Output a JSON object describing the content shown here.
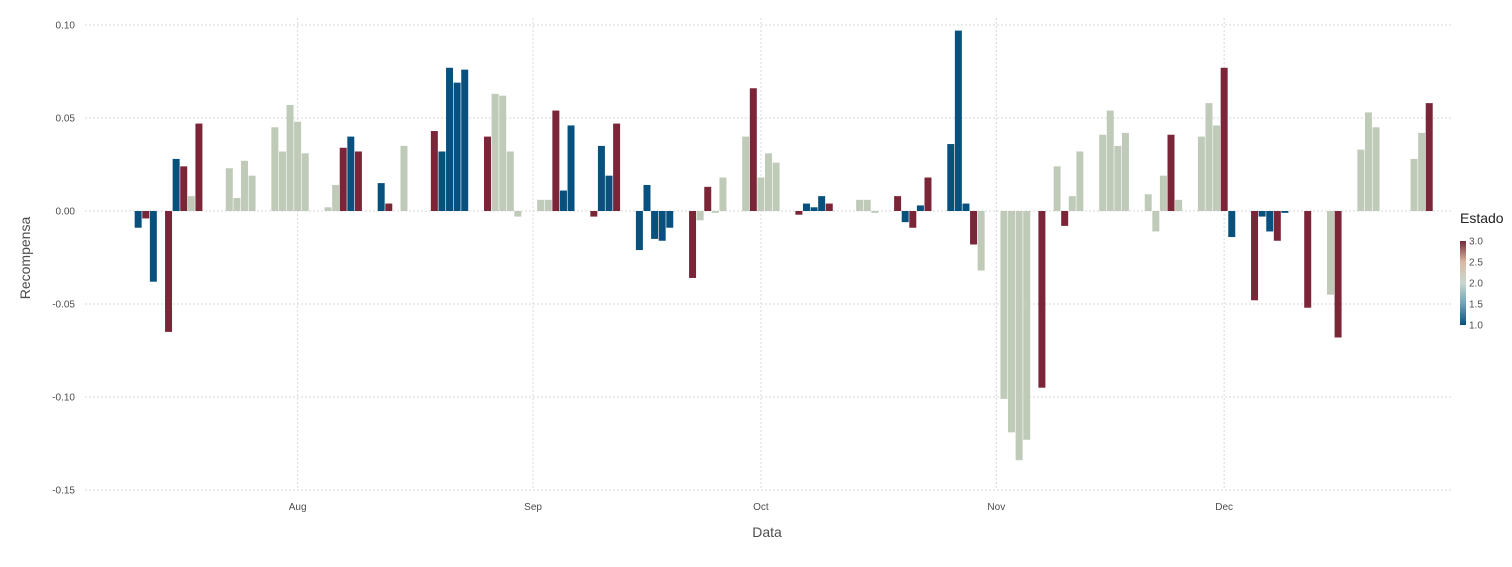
{
  "chart_data": {
    "type": "bar",
    "xlabel": "Data",
    "ylabel": "Recompensa",
    "x_axis": {
      "type": "date",
      "range": [
        "2007-07-04",
        "2007-12-31"
      ],
      "ticks": [
        {
          "date": "2007-08-01",
          "label": "Aug"
        },
        {
          "date": "2007-09-01",
          "label": "Sep"
        },
        {
          "date": "2007-10-01",
          "label": "Oct"
        },
        {
          "date": "2007-11-01",
          "label": "Nov"
        },
        {
          "date": "2007-12-01",
          "label": "Dec"
        }
      ]
    },
    "ylim": [
      -0.15,
      0.1
    ],
    "y_ticks": [
      {
        "value": 0.1,
        "label": "0.10"
      },
      {
        "value": 0.05,
        "label": "0.05"
      },
      {
        "value": 0.0,
        "label": "0.00"
      },
      {
        "value": -0.05,
        "label": "-0.05"
      },
      {
        "value": -0.1,
        "label": "-0.10"
      },
      {
        "value": -0.15,
        "label": "-0.15"
      }
    ],
    "grid": true,
    "legend": {
      "title": "Estado",
      "position": "right",
      "range": [
        1.0,
        3.0
      ],
      "labels": [
        "3.0",
        "2.5",
        "2.0",
        "1.5",
        "1.0"
      ],
      "colors": {
        "low": "#08517f",
        "mid": "#bfcbb8",
        "high": "#7b2638"
      }
    },
    "points": [
      {
        "date": "2007-07-11",
        "value": -0.009,
        "estado": 1
      },
      {
        "date": "2007-07-12",
        "value": -0.004,
        "estado": 3
      },
      {
        "date": "2007-07-13",
        "value": -0.038,
        "estado": 1
      },
      {
        "date": "2007-07-15",
        "value": -0.065,
        "estado": 3
      },
      {
        "date": "2007-07-16",
        "value": 0.028,
        "estado": 1
      },
      {
        "date": "2007-07-17",
        "value": 0.024,
        "estado": 3
      },
      {
        "date": "2007-07-18",
        "value": 0.008,
        "estado": 2
      },
      {
        "date": "2007-07-19",
        "value": 0.047,
        "estado": 3
      },
      {
        "date": "2007-07-23",
        "value": 0.023,
        "estado": 2
      },
      {
        "date": "2007-07-24",
        "value": 0.007,
        "estado": 2
      },
      {
        "date": "2007-07-25",
        "value": 0.027,
        "estado": 2
      },
      {
        "date": "2007-07-26",
        "value": 0.019,
        "estado": 2
      },
      {
        "date": "2007-07-29",
        "value": 0.045,
        "estado": 2
      },
      {
        "date": "2007-07-30",
        "value": 0.032,
        "estado": 2
      },
      {
        "date": "2007-07-31",
        "value": 0.057,
        "estado": 2
      },
      {
        "date": "2007-08-01",
        "value": 0.048,
        "estado": 2
      },
      {
        "date": "2007-08-02",
        "value": 0.031,
        "estado": 2
      },
      {
        "date": "2007-08-05",
        "value": 0.002,
        "estado": 2
      },
      {
        "date": "2007-08-06",
        "value": 0.014,
        "estado": 2
      },
      {
        "date": "2007-08-07",
        "value": 0.034,
        "estado": 3
      },
      {
        "date": "2007-08-08",
        "value": 0.04,
        "estado": 1
      },
      {
        "date": "2007-08-09",
        "value": 0.032,
        "estado": 3
      },
      {
        "date": "2007-08-12",
        "value": 0.015,
        "estado": 1
      },
      {
        "date": "2007-08-13",
        "value": 0.004,
        "estado": 3
      },
      {
        "date": "2007-08-15",
        "value": 0.035,
        "estado": 2
      },
      {
        "date": "2007-08-19",
        "value": 0.043,
        "estado": 3
      },
      {
        "date": "2007-08-20",
        "value": 0.032,
        "estado": 1
      },
      {
        "date": "2007-08-21",
        "value": 0.077,
        "estado": 1
      },
      {
        "date": "2007-08-22",
        "value": 0.069,
        "estado": 1
      },
      {
        "date": "2007-08-23",
        "value": 0.076,
        "estado": 1
      },
      {
        "date": "2007-08-26",
        "value": 0.04,
        "estado": 3
      },
      {
        "date": "2007-08-27",
        "value": 0.063,
        "estado": 2
      },
      {
        "date": "2007-08-28",
        "value": 0.062,
        "estado": 2
      },
      {
        "date": "2007-08-29",
        "value": 0.032,
        "estado": 2
      },
      {
        "date": "2007-08-30",
        "value": -0.003,
        "estado": 2
      },
      {
        "date": "2007-09-02",
        "value": 0.006,
        "estado": 2
      },
      {
        "date": "2007-09-03",
        "value": 0.006,
        "estado": 2
      },
      {
        "date": "2007-09-04",
        "value": 0.054,
        "estado": 3
      },
      {
        "date": "2007-09-05",
        "value": 0.011,
        "estado": 1
      },
      {
        "date": "2007-09-06",
        "value": 0.046,
        "estado": 1
      },
      {
        "date": "2007-09-09",
        "value": -0.003,
        "estado": 3
      },
      {
        "date": "2007-09-10",
        "value": 0.035,
        "estado": 1
      },
      {
        "date": "2007-09-11",
        "value": 0.019,
        "estado": 1
      },
      {
        "date": "2007-09-12",
        "value": 0.047,
        "estado": 3
      },
      {
        "date": "2007-09-15",
        "value": -0.021,
        "estado": 1
      },
      {
        "date": "2007-09-16",
        "value": 0.014,
        "estado": 1
      },
      {
        "date": "2007-09-17",
        "value": -0.015,
        "estado": 1
      },
      {
        "date": "2007-09-18",
        "value": -0.016,
        "estado": 1
      },
      {
        "date": "2007-09-19",
        "value": -0.009,
        "estado": 1
      },
      {
        "date": "2007-09-22",
        "value": -0.036,
        "estado": 3
      },
      {
        "date": "2007-09-23",
        "value": -0.005,
        "estado": 2
      },
      {
        "date": "2007-09-24",
        "value": 0.013,
        "estado": 3
      },
      {
        "date": "2007-09-25",
        "value": -0.001,
        "estado": 2
      },
      {
        "date": "2007-09-26",
        "value": 0.018,
        "estado": 2
      },
      {
        "date": "2007-09-29",
        "value": 0.04,
        "estado": 2
      },
      {
        "date": "2007-09-30",
        "value": 0.066,
        "estado": 3
      },
      {
        "date": "2007-10-01",
        "value": 0.018,
        "estado": 2
      },
      {
        "date": "2007-10-02",
        "value": 0.031,
        "estado": 2
      },
      {
        "date": "2007-10-03",
        "value": 0.026,
        "estado": 2
      },
      {
        "date": "2007-10-06",
        "value": -0.002,
        "estado": 3
      },
      {
        "date": "2007-10-07",
        "value": 0.004,
        "estado": 1
      },
      {
        "date": "2007-10-08",
        "value": 0.002,
        "estado": 1
      },
      {
        "date": "2007-10-09",
        "value": 0.008,
        "estado": 1
      },
      {
        "date": "2007-10-10",
        "value": 0.004,
        "estado": 3
      },
      {
        "date": "2007-10-14",
        "value": 0.006,
        "estado": 2
      },
      {
        "date": "2007-10-15",
        "value": 0.006,
        "estado": 2
      },
      {
        "date": "2007-10-16",
        "value": -0.001,
        "estado": 2
      },
      {
        "date": "2007-10-19",
        "value": 0.008,
        "estado": 3
      },
      {
        "date": "2007-10-20",
        "value": -0.006,
        "estado": 1
      },
      {
        "date": "2007-10-21",
        "value": -0.009,
        "estado": 3
      },
      {
        "date": "2007-10-22",
        "value": 0.003,
        "estado": 1
      },
      {
        "date": "2007-10-23",
        "value": 0.018,
        "estado": 3
      },
      {
        "date": "2007-10-26",
        "value": 0.036,
        "estado": 1
      },
      {
        "date": "2007-10-27",
        "value": 0.097,
        "estado": 1
      },
      {
        "date": "2007-10-28",
        "value": 0.004,
        "estado": 1
      },
      {
        "date": "2007-10-29",
        "value": -0.018,
        "estado": 3
      },
      {
        "date": "2007-10-30",
        "value": -0.032,
        "estado": 2
      },
      {
        "date": "2007-11-02",
        "value": -0.101,
        "estado": 2
      },
      {
        "date": "2007-11-03",
        "value": -0.119,
        "estado": 2
      },
      {
        "date": "2007-11-04",
        "value": -0.134,
        "estado": 2
      },
      {
        "date": "2007-11-05",
        "value": -0.123,
        "estado": 2
      },
      {
        "date": "2007-11-07",
        "value": -0.095,
        "estado": 3
      },
      {
        "date": "2007-11-09",
        "value": 0.024,
        "estado": 2
      },
      {
        "date": "2007-11-10",
        "value": -0.008,
        "estado": 3
      },
      {
        "date": "2007-11-11",
        "value": 0.008,
        "estado": 2
      },
      {
        "date": "2007-11-12",
        "value": 0.032,
        "estado": 2
      },
      {
        "date": "2007-11-15",
        "value": 0.041,
        "estado": 2
      },
      {
        "date": "2007-11-16",
        "value": 0.054,
        "estado": 2
      },
      {
        "date": "2007-11-17",
        "value": 0.035,
        "estado": 2
      },
      {
        "date": "2007-11-18",
        "value": 0.042,
        "estado": 2
      },
      {
        "date": "2007-11-21",
        "value": 0.009,
        "estado": 2
      },
      {
        "date": "2007-11-22",
        "value": -0.011,
        "estado": 2
      },
      {
        "date": "2007-11-23",
        "value": 0.019,
        "estado": 2
      },
      {
        "date": "2007-11-24",
        "value": 0.041,
        "estado": 3
      },
      {
        "date": "2007-11-25",
        "value": 0.006,
        "estado": 2
      },
      {
        "date": "2007-11-28",
        "value": 0.04,
        "estado": 2
      },
      {
        "date": "2007-11-29",
        "value": 0.058,
        "estado": 2
      },
      {
        "date": "2007-11-30",
        "value": 0.046,
        "estado": 2
      },
      {
        "date": "2007-12-01",
        "value": 0.077,
        "estado": 3
      },
      {
        "date": "2007-12-02",
        "value": -0.014,
        "estado": 1
      },
      {
        "date": "2007-12-05",
        "value": -0.048,
        "estado": 3
      },
      {
        "date": "2007-12-06",
        "value": -0.003,
        "estado": 1
      },
      {
        "date": "2007-12-07",
        "value": -0.011,
        "estado": 1
      },
      {
        "date": "2007-12-08",
        "value": -0.016,
        "estado": 3
      },
      {
        "date": "2007-12-09",
        "value": -0.001,
        "estado": 1
      },
      {
        "date": "2007-12-12",
        "value": -0.052,
        "estado": 3
      },
      {
        "date": "2007-12-15",
        "value": -0.045,
        "estado": 2
      },
      {
        "date": "2007-12-16",
        "value": -0.068,
        "estado": 3
      },
      {
        "date": "2007-12-19",
        "value": 0.033,
        "estado": 2
      },
      {
        "date": "2007-12-20",
        "value": 0.053,
        "estado": 2
      },
      {
        "date": "2007-12-21",
        "value": 0.045,
        "estado": 2
      },
      {
        "date": "2007-12-26",
        "value": 0.028,
        "estado": 2
      },
      {
        "date": "2007-12-27",
        "value": 0.042,
        "estado": 2
      },
      {
        "date": "2007-12-28",
        "value": 0.058,
        "estado": 3
      }
    ]
  }
}
